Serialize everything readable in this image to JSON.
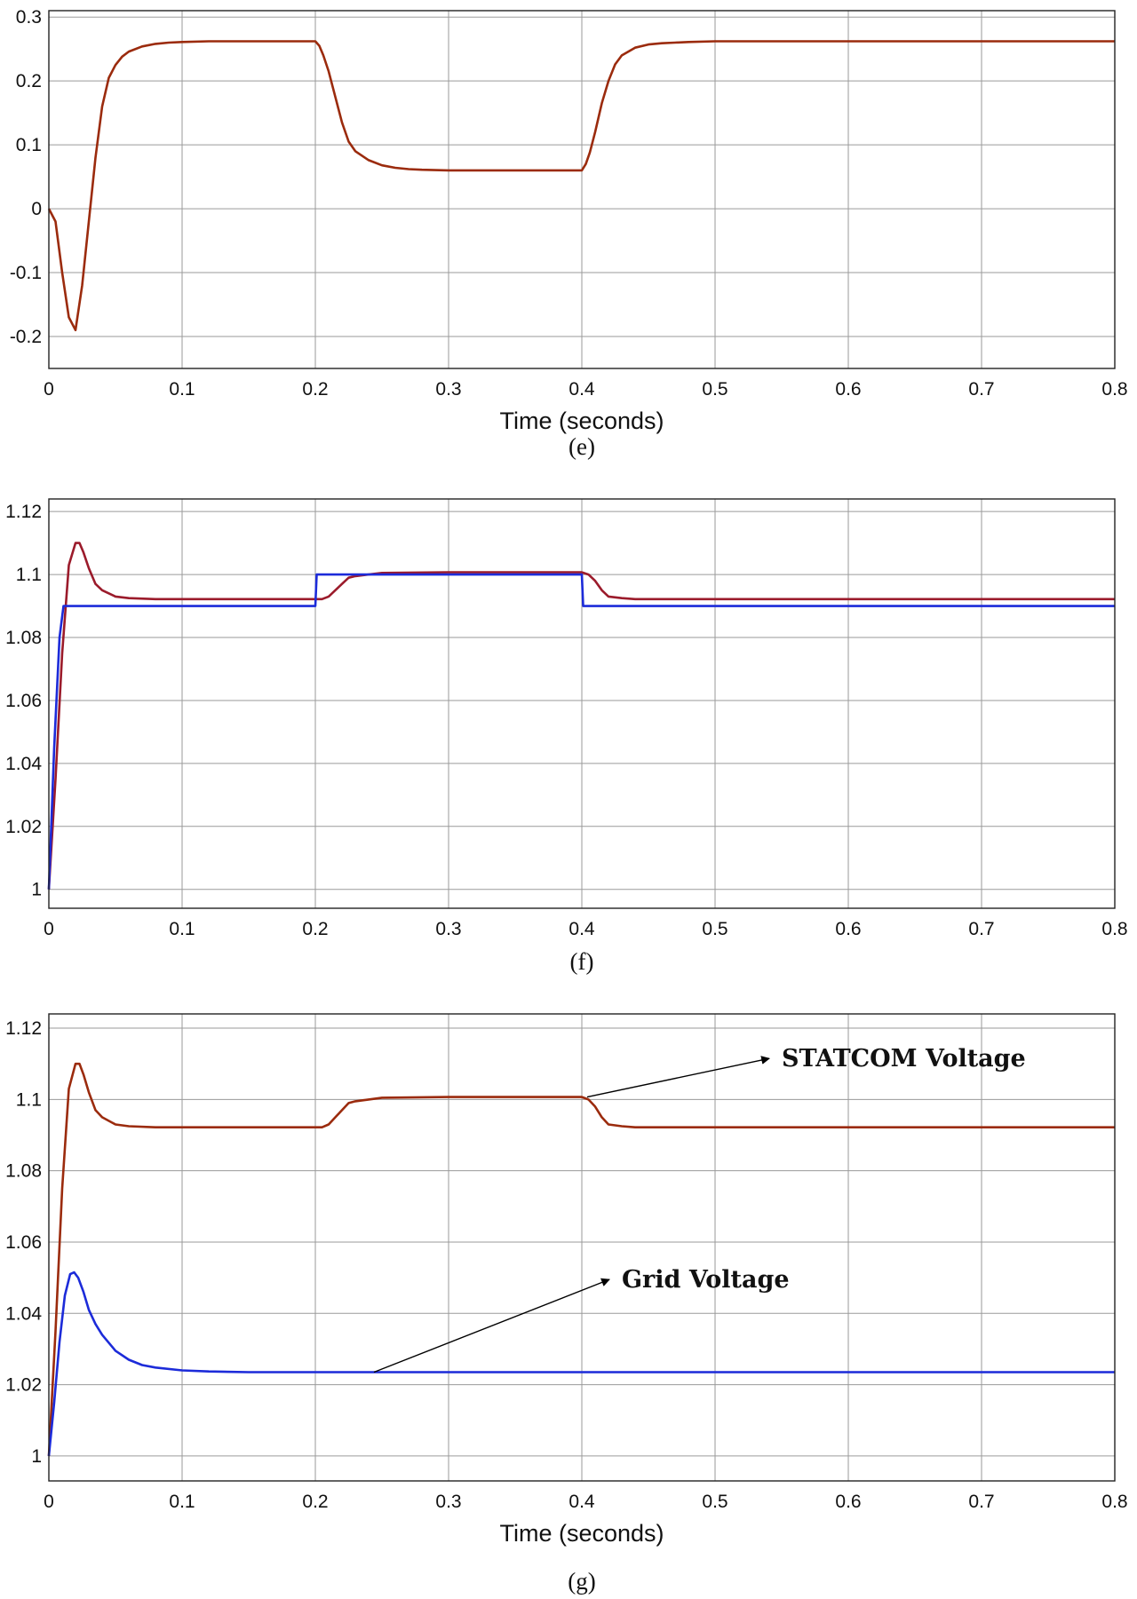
{
  "chart_data": [
    {
      "type": "line",
      "caption": "(e)",
      "xlabel": "Time (seconds)",
      "ylabel": "",
      "xlim": [
        0,
        0.8
      ],
      "ylim": [
        -0.25,
        0.31
      ],
      "xticks": [
        "0",
        "0.1",
        "0.2",
        "0.3",
        "0.4",
        "0.5",
        "0.6",
        "0.7",
        "0.8"
      ],
      "yticks": [
        "-0.2",
        "-0.1",
        "0",
        "0.1",
        "0.2",
        "0.3"
      ],
      "grid": true,
      "series": [
        {
          "color": "#9b2b0d",
          "x": [
            0,
            0.005,
            0.01,
            0.015,
            0.02,
            0.025,
            0.03,
            0.035,
            0.04,
            0.045,
            0.05,
            0.055,
            0.06,
            0.07,
            0.08,
            0.09,
            0.1,
            0.12,
            0.15,
            0.2,
            0.203,
            0.206,
            0.21,
            0.215,
            0.22,
            0.225,
            0.23,
            0.24,
            0.25,
            0.26,
            0.27,
            0.28,
            0.3,
            0.33,
            0.36,
            0.39,
            0.4,
            0.403,
            0.406,
            0.41,
            0.415,
            0.42,
            0.425,
            0.43,
            0.44,
            0.45,
            0.46,
            0.47,
            0.48,
            0.5,
            0.55,
            0.6,
            0.7,
            0.8
          ],
          "y": [
            0,
            -0.02,
            -0.1,
            -0.17,
            -0.19,
            -0.12,
            -0.02,
            0.08,
            0.16,
            0.205,
            0.225,
            0.238,
            0.246,
            0.254,
            0.258,
            0.26,
            0.261,
            0.262,
            0.262,
            0.262,
            0.255,
            0.24,
            0.215,
            0.175,
            0.135,
            0.105,
            0.09,
            0.076,
            0.068,
            0.064,
            0.062,
            0.061,
            0.06,
            0.06,
            0.06,
            0.06,
            0.06,
            0.07,
            0.088,
            0.12,
            0.165,
            0.2,
            0.226,
            0.24,
            0.252,
            0.257,
            0.259,
            0.26,
            0.261,
            0.262,
            0.262,
            0.262,
            0.262,
            0.262
          ]
        }
      ]
    },
    {
      "type": "line",
      "caption": "(f)",
      "xlabel": "",
      "ylabel": "",
      "xlim": [
        0,
        0.8
      ],
      "ylim": [
        0.994,
        1.124
      ],
      "xticks": [
        "0",
        "0.1",
        "0.2",
        "0.3",
        "0.4",
        "0.5",
        "0.6",
        "0.7",
        "0.8"
      ],
      "yticks": [
        "1",
        "1.02",
        "1.04",
        "1.06",
        "1.08",
        "1.1",
        "1.12"
      ],
      "grid": true,
      "series": [
        {
          "color": "#9b1b2b",
          "x": [
            0,
            0.005,
            0.01,
            0.015,
            0.02,
            0.023,
            0.026,
            0.03,
            0.035,
            0.04,
            0.05,
            0.06,
            0.08,
            0.1,
            0.15,
            0.2,
            0.205,
            0.21,
            0.215,
            0.22,
            0.225,
            0.23,
            0.24,
            0.25,
            0.3,
            0.35,
            0.4,
            0.405,
            0.41,
            0.415,
            0.42,
            0.43,
            0.44,
            0.45,
            0.5,
            0.6,
            0.7,
            0.8
          ],
          "y": [
            1.0,
            1.035,
            1.075,
            1.103,
            1.11,
            1.11,
            1.107,
            1.102,
            1.097,
            1.095,
            1.093,
            1.0925,
            1.0922,
            1.0922,
            1.0922,
            1.0922,
            1.0922,
            1.093,
            1.095,
            1.097,
            1.099,
            1.0995,
            1.1,
            1.1005,
            1.1007,
            1.1007,
            1.1007,
            1.1,
            1.098,
            1.095,
            1.093,
            1.0925,
            1.0922,
            1.0922,
            1.0922,
            1.0922,
            1.0922,
            1.0922
          ]
        },
        {
          "color": "#1c2bd9",
          "x": [
            0,
            0.004,
            0.008,
            0.011,
            0.2,
            0.201,
            0.4,
            0.401,
            0.8
          ],
          "y": [
            1.0,
            1.045,
            1.08,
            1.09,
            1.09,
            1.1,
            1.1,
            1.09,
            1.09
          ]
        }
      ]
    },
    {
      "type": "line",
      "caption": "(g)",
      "xlabel": "Time (seconds)",
      "ylabel": "",
      "xlim": [
        0,
        0.8
      ],
      "ylim": [
        0.993,
        1.124
      ],
      "xticks": [
        "0",
        "0.1",
        "0.2",
        "0.3",
        "0.4",
        "0.5",
        "0.6",
        "0.7",
        "0.8"
      ],
      "yticks": [
        "1",
        "1.02",
        "1.04",
        "1.06",
        "1.08",
        "1.1",
        "1.12"
      ],
      "grid": true,
      "annotations": [
        {
          "text": "STATCOM Voltage",
          "at_x": 0.4,
          "at_y": 1.1007,
          "label_x": 0.55,
          "label_y": 1.1115
        },
        {
          "text": "Grid Voltage",
          "at_x": 0.24,
          "at_y": 1.0235,
          "label_x": 0.43,
          "label_y": 1.0495
        }
      ],
      "series": [
        {
          "name": "STATCOM Voltage",
          "color": "#9b2b0d",
          "x": [
            0,
            0.005,
            0.01,
            0.015,
            0.02,
            0.023,
            0.026,
            0.03,
            0.035,
            0.04,
            0.05,
            0.06,
            0.08,
            0.1,
            0.15,
            0.2,
            0.205,
            0.21,
            0.215,
            0.22,
            0.225,
            0.23,
            0.24,
            0.25,
            0.3,
            0.35,
            0.4,
            0.405,
            0.41,
            0.415,
            0.42,
            0.43,
            0.44,
            0.45,
            0.5,
            0.6,
            0.7,
            0.8
          ],
          "y": [
            1.0,
            1.035,
            1.075,
            1.103,
            1.11,
            1.11,
            1.107,
            1.102,
            1.097,
            1.095,
            1.093,
            1.0925,
            1.0922,
            1.0922,
            1.0922,
            1.0922,
            1.0922,
            1.093,
            1.095,
            1.097,
            1.099,
            1.0995,
            1.1,
            1.1005,
            1.1007,
            1.1007,
            1.1007,
            1.1,
            1.098,
            1.095,
            1.093,
            1.0925,
            1.0922,
            1.0922,
            1.0922,
            1.0922,
            1.0922,
            1.0922
          ]
        },
        {
          "name": "Grid Voltage",
          "color": "#1c2bd9",
          "x": [
            0,
            0.004,
            0.008,
            0.012,
            0.016,
            0.019,
            0.022,
            0.026,
            0.03,
            0.035,
            0.04,
            0.05,
            0.06,
            0.07,
            0.08,
            0.1,
            0.12,
            0.15,
            0.2,
            0.3,
            0.4,
            0.5,
            0.6,
            0.7,
            0.8
          ],
          "y": [
            1.0,
            1.015,
            1.032,
            1.045,
            1.051,
            1.0515,
            1.05,
            1.046,
            1.041,
            1.037,
            1.034,
            1.0295,
            1.027,
            1.0255,
            1.0248,
            1.024,
            1.0237,
            1.0235,
            1.0235,
            1.0235,
            1.0235,
            1.0235,
            1.0235,
            1.0235,
            1.0235
          ]
        }
      ]
    }
  ]
}
